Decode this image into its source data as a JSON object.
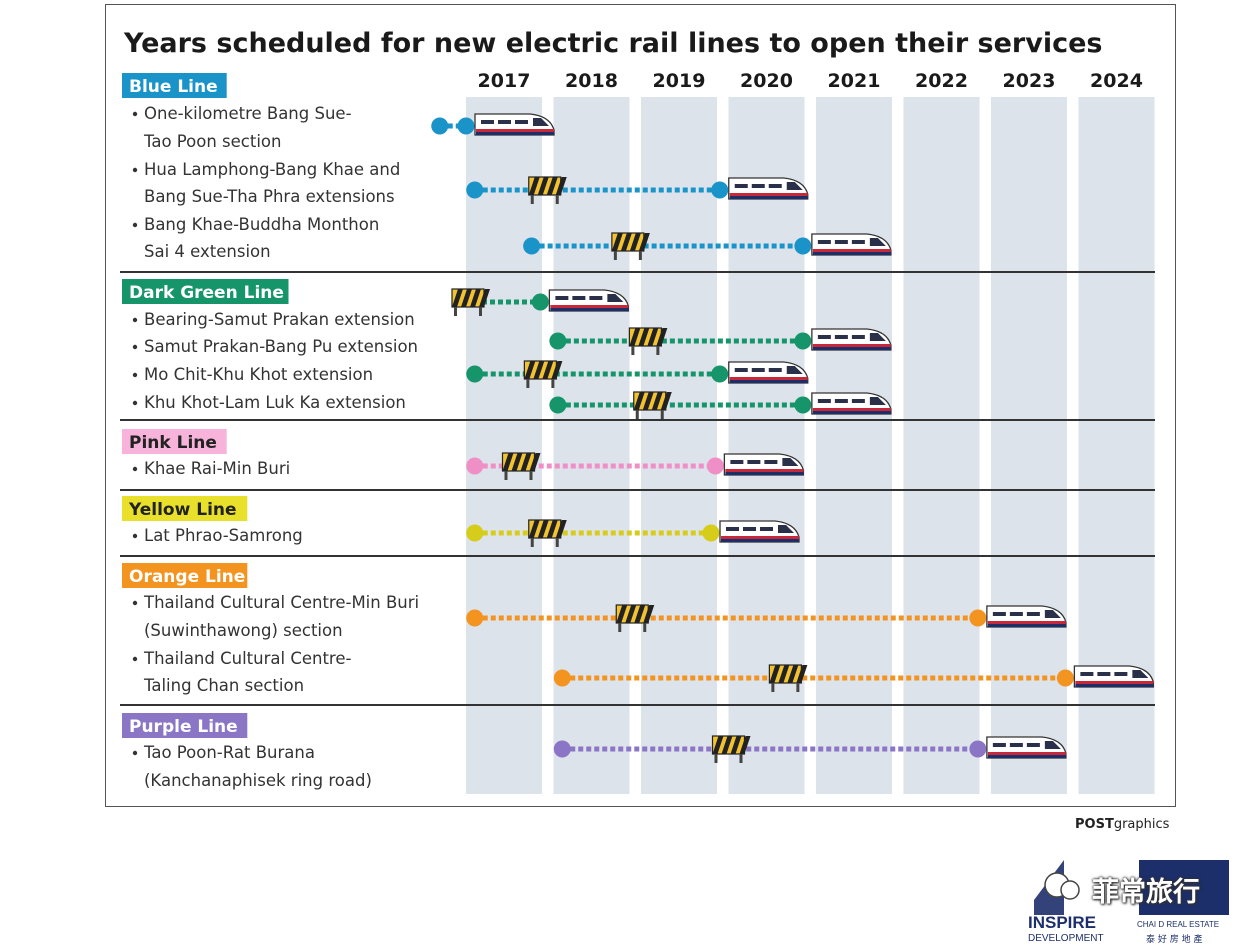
{
  "chart_data": {
    "type": "timeline",
    "title": "Years scheduled for new electric rail lines to open their services",
    "years": [
      "2017",
      "2018",
      "2019",
      "2020",
      "2021",
      "2022",
      "2023",
      "2024"
    ],
    "groups": [
      {
        "name": "Blue Line",
        "color": "#1a93c9",
        "label_bg": "#1a93c9",
        "label_fg": "#ffffff",
        "items": [
          {
            "label": [
              "One-kilometre Bang Sue-",
              "Tao Poon section"
            ],
            "start": 2016.7,
            "open": 2017.0,
            "construction": null
          },
          {
            "label": [
              "Hua Lamphong-Bang Khae and",
              "Bang Sue-Tha Phra extensions"
            ],
            "start": 2017.1,
            "open": 2019.9,
            "construction": 2017.9
          },
          {
            "label": [
              "Bang Khae-Buddha Monthon",
              "Sai 4 extension"
            ],
            "start": 2017.75,
            "open": 2020.85,
            "construction": 2018.85
          }
        ]
      },
      {
        "name": "Dark Green Line",
        "color": "#16956a",
        "label_bg": "#16956a",
        "label_fg": "#ffffff",
        "items": [
          {
            "label": [
              "Bearing-Samut Prakan extension"
            ],
            "start": 2017.0,
            "open": 2017.85,
            "construction": 2017.05
          },
          {
            "label": [
              "Samut Prakan-Bang Pu extension"
            ],
            "start": 2018.05,
            "open": 2020.85,
            "construction": 2019.05
          },
          {
            "label": [
              "Mo Chit-Khu Khot extension"
            ],
            "start": 2017.1,
            "open": 2019.9,
            "construction": 2017.85
          },
          {
            "label": [
              "Khu Khot-Lam Luk Ka extension"
            ],
            "start": 2018.05,
            "open": 2020.85,
            "construction": 2019.1
          }
        ]
      },
      {
        "name": "Pink Line",
        "color": "#f08fc6",
        "label_bg": "#f7b3d9",
        "label_fg": "#222222",
        "items": [
          {
            "label": [
              "Khae Rai-Min Buri"
            ],
            "start": 2017.1,
            "open": 2019.85,
            "construction": 2017.6
          }
        ]
      },
      {
        "name": "Yellow Line",
        "color": "#d6cd1a",
        "label_bg": "#e8e02a",
        "label_fg": "#222222",
        "items": [
          {
            "label": [
              "Lat Phrao-Samrong"
            ],
            "start": 2017.1,
            "open": 2019.8,
            "construction": 2017.9
          }
        ]
      },
      {
        "name": "Orange Line",
        "color": "#f39420",
        "label_bg": "#f39420",
        "label_fg": "#ffffff",
        "items": [
          {
            "label": [
              "Thailand Cultural Centre-Min Buri",
              "(Suwinthawong) section"
            ],
            "start": 2017.1,
            "open": 2022.85,
            "construction": 2018.9
          },
          {
            "label": [
              "Thailand Cultural Centre-",
              "Taling Chan section"
            ],
            "start": 2018.1,
            "open": 2023.85,
            "construction": 2020.65
          }
        ]
      },
      {
        "name": "Purple Line",
        "color": "#8a76c4",
        "label_bg": "#8a76c4",
        "label_fg": "#ffffff",
        "items": [
          {
            "label": [
              "Tao Poon-Rat Burana",
              "(Kanchanaphisek ring road)"
            ],
            "start": 2018.1,
            "open": 2022.85,
            "construction": 2020.0
          }
        ]
      }
    ]
  },
  "credit": {
    "bold": "POST",
    "rest": "graphics"
  },
  "watermark": {
    "text": "菲常旅行",
    "brand1": "INSPIRE",
    "brand1_sub": "DEVELOPMENT",
    "brand2": "CHAI D REAL ESTATE",
    "brand2_cn": "泰 好 房 地 產"
  }
}
